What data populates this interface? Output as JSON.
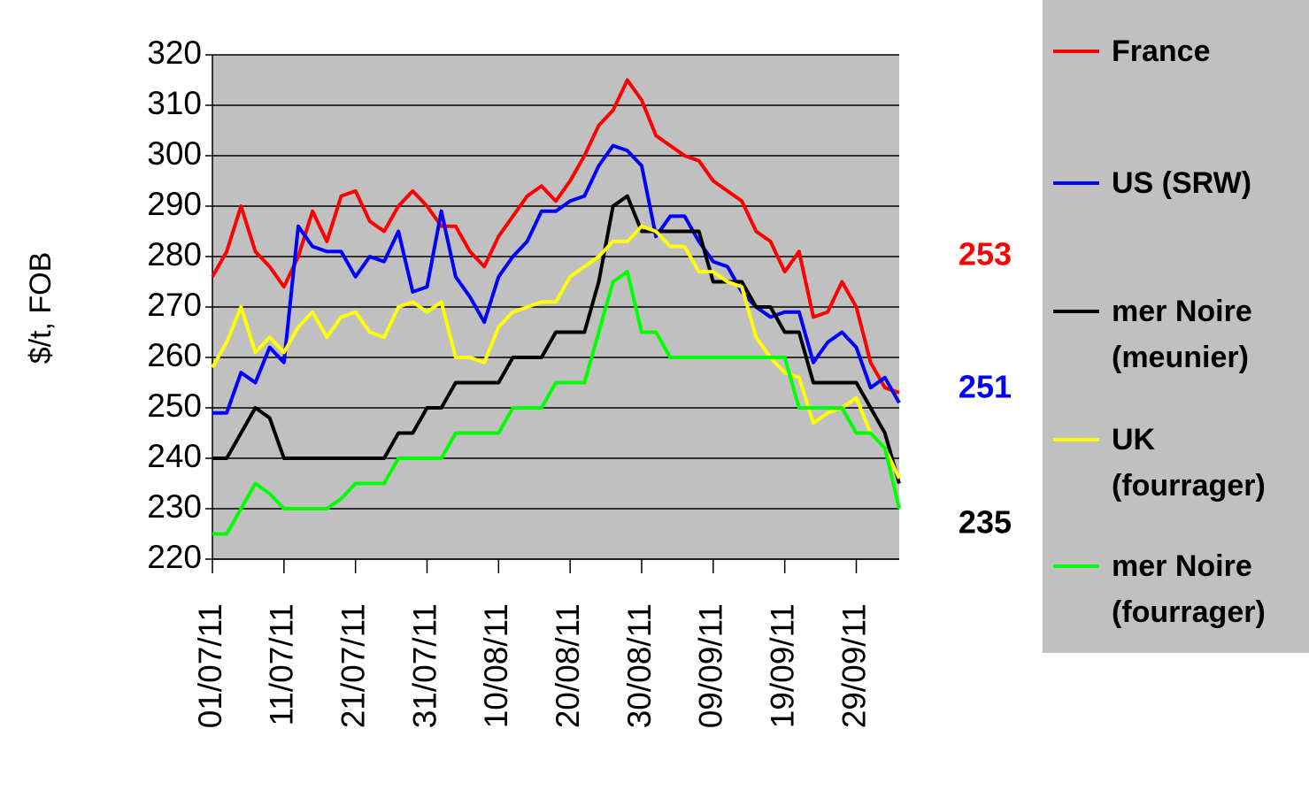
{
  "chart_data": {
    "type": "line",
    "ylabel": "$/t, FOB",
    "x": [
      "2011-07-01",
      "2011-07-03",
      "2011-07-05",
      "2011-07-07",
      "2011-07-09",
      "2011-07-11",
      "2011-07-13",
      "2011-07-15",
      "2011-07-17",
      "2011-07-19",
      "2011-07-21",
      "2011-07-23",
      "2011-07-25",
      "2011-07-27",
      "2011-07-29",
      "2011-07-31",
      "2011-08-02",
      "2011-08-04",
      "2011-08-06",
      "2011-08-08",
      "2011-08-10",
      "2011-08-12",
      "2011-08-14",
      "2011-08-16",
      "2011-08-18",
      "2011-08-20",
      "2011-08-22",
      "2011-08-24",
      "2011-08-26",
      "2011-08-28",
      "2011-08-30",
      "2011-09-01",
      "2011-09-03",
      "2011-09-05",
      "2011-09-07",
      "2011-09-09",
      "2011-09-11",
      "2011-09-13",
      "2011-09-15",
      "2011-09-17",
      "2011-09-19",
      "2011-09-21",
      "2011-09-23",
      "2011-09-25",
      "2011-09-27",
      "2011-09-29",
      "2011-10-01",
      "2011-10-03",
      "2011-10-05"
    ],
    "xlim": [
      "2011-07-01",
      "2011-10-05"
    ],
    "xticks": [
      {
        "value": "2011-07-01",
        "label": "01/07/11"
      },
      {
        "value": "2011-07-11",
        "label": "11/07/11"
      },
      {
        "value": "2011-07-21",
        "label": "21/07/11"
      },
      {
        "value": "2011-07-31",
        "label": "31/07/11"
      },
      {
        "value": "2011-08-10",
        "label": "10/08/11"
      },
      {
        "value": "2011-08-20",
        "label": "20/08/11"
      },
      {
        "value": "2011-08-30",
        "label": "30/08/11"
      },
      {
        "value": "2011-09-09",
        "label": "09/09/11"
      },
      {
        "value": "2011-09-19",
        "label": "19/09/11"
      },
      {
        "value": "2011-09-29",
        "label": "29/09/11"
      }
    ],
    "ylim": [
      220,
      320
    ],
    "yticks": [
      220,
      230,
      240,
      250,
      260,
      270,
      280,
      290,
      300,
      310,
      320
    ],
    "grid": true,
    "background": "#c0c0c0",
    "legend": "right",
    "series": [
      {
        "name": "France",
        "color": "#ff0000",
        "end_label": 253,
        "values": [
          276,
          281,
          290,
          281,
          278,
          274,
          280,
          289,
          283,
          292,
          293,
          287,
          285,
          290,
          293,
          290,
          286,
          286,
          281,
          278,
          284,
          288,
          292,
          294,
          291,
          295,
          300,
          306,
          309,
          315,
          311,
          304,
          302,
          300,
          299,
          295,
          293,
          291,
          285,
          283,
          277,
          281,
          268,
          269,
          275,
          270,
          259,
          254,
          253
        ]
      },
      {
        "name": "US (SRW)",
        "color": "#0000ff",
        "end_label": 251,
        "values": [
          249,
          249,
          257,
          255,
          262,
          259,
          286,
          282,
          281,
          281,
          276,
          280,
          279,
          285,
          273,
          274,
          289,
          276,
          272,
          267,
          276,
          280,
          283,
          289,
          289,
          291,
          292,
          298,
          302,
          301,
          298,
          284,
          288,
          288,
          283,
          279,
          278,
          273,
          270,
          268,
          269,
          269,
          259,
          263,
          265,
          262,
          254,
          256,
          251
        ]
      },
      {
        "name": "mer Noire (meunier)",
        "color": "#000000",
        "end_label": 235,
        "values": [
          240,
          240,
          245,
          250,
          248,
          240,
          240,
          240,
          240,
          240,
          240,
          240,
          240,
          245,
          245,
          250,
          250,
          255,
          255,
          255,
          255,
          260,
          260,
          260,
          265,
          265,
          265,
          275,
          290,
          292,
          285,
          285,
          285,
          285,
          285,
          275,
          275,
          275,
          270,
          270,
          265,
          265,
          255,
          255,
          255,
          255,
          250,
          245,
          235
        ]
      },
      {
        "name": "UK (fourrager)",
        "color": "#ffff00",
        "values": [
          258,
          263,
          270,
          261,
          264,
          261,
          266,
          269,
          264,
          268,
          269,
          265,
          264,
          270,
          271,
          269,
          271,
          260,
          260,
          259,
          266,
          269,
          270,
          271,
          271,
          276,
          278,
          280,
          283,
          283,
          286,
          285,
          282,
          282,
          277,
          277,
          275,
          274,
          264,
          260,
          257,
          256,
          247,
          249,
          250,
          252,
          245,
          242,
          236
        ]
      },
      {
        "name": "mer Noire (fourrager)",
        "color": "#00ff00",
        "values": [
          225,
          225,
          230,
          235,
          233,
          230,
          230,
          230,
          230,
          232,
          235,
          235,
          235,
          240,
          240,
          240,
          240,
          245,
          245,
          245,
          245,
          250,
          250,
          250,
          255,
          255,
          255,
          265,
          275,
          277,
          265,
          265,
          260,
          260,
          260,
          260,
          260,
          260,
          260,
          260,
          260,
          250,
          250,
          250,
          250,
          245,
          245,
          242,
          230
        ]
      }
    ]
  }
}
